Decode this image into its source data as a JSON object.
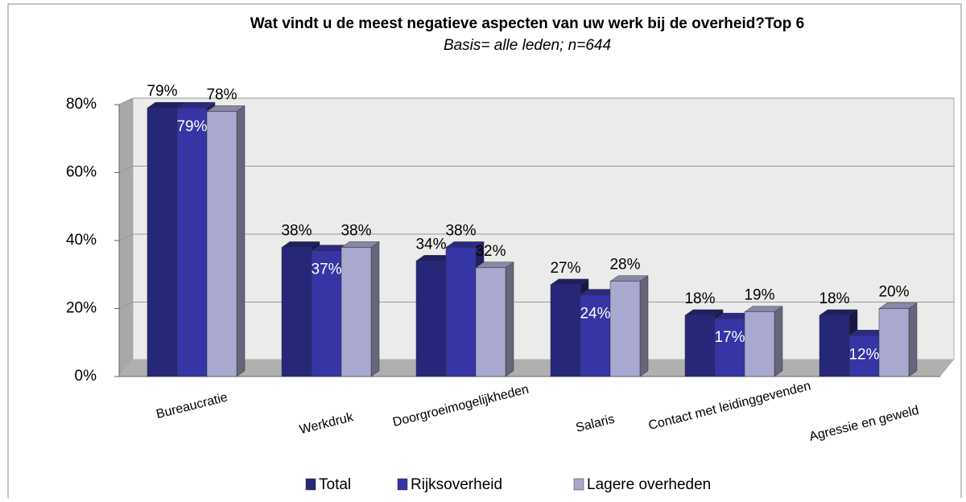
{
  "chart_data": {
    "type": "bar3d",
    "title": "Wat vindt u de meest negatieve aspecten  van uw werk bij de overheid?Top 6",
    "subtitle": "Basis= alle leden; n=644",
    "categories": [
      "Bureaucratie",
      "Werkdruk",
      "Doorgroeimogelijkheden",
      "Salaris",
      "Contact met leidinggevenden",
      "Agressie en geweld"
    ],
    "series": [
      {
        "name": "Total",
        "color": "#27277a",
        "values": [
          79,
          38,
          34,
          27,
          18,
          18
        ],
        "value_labels": [
          "79%",
          "38%",
          "34%",
          "27%",
          "18%",
          "18%"
        ]
      },
      {
        "name": "Rijksoverheid",
        "color": "#3535a6",
        "values": [
          79,
          37,
          38,
          24,
          17,
          12
        ],
        "value_labels": [
          "79%",
          "37%",
          "38%",
          "24%",
          "17%",
          "12%"
        ]
      },
      {
        "name": "Lagere overheden",
        "color": "#a9a9cf",
        "values": [
          78,
          38,
          32,
          28,
          19,
          20
        ],
        "value_labels": [
          "78%",
          "38%",
          "32%",
          "28%",
          "19%",
          "20%"
        ]
      }
    ],
    "ylim": [
      0,
      80
    ],
    "yticks": [
      {
        "value": 0,
        "label": "0%"
      },
      {
        "value": 20,
        "label": "20%"
      },
      {
        "value": 40,
        "label": "40%"
      },
      {
        "value": 60,
        "label": "60%"
      },
      {
        "value": 80,
        "label": "80%"
      }
    ],
    "grid": true,
    "legend": "bottom"
  }
}
